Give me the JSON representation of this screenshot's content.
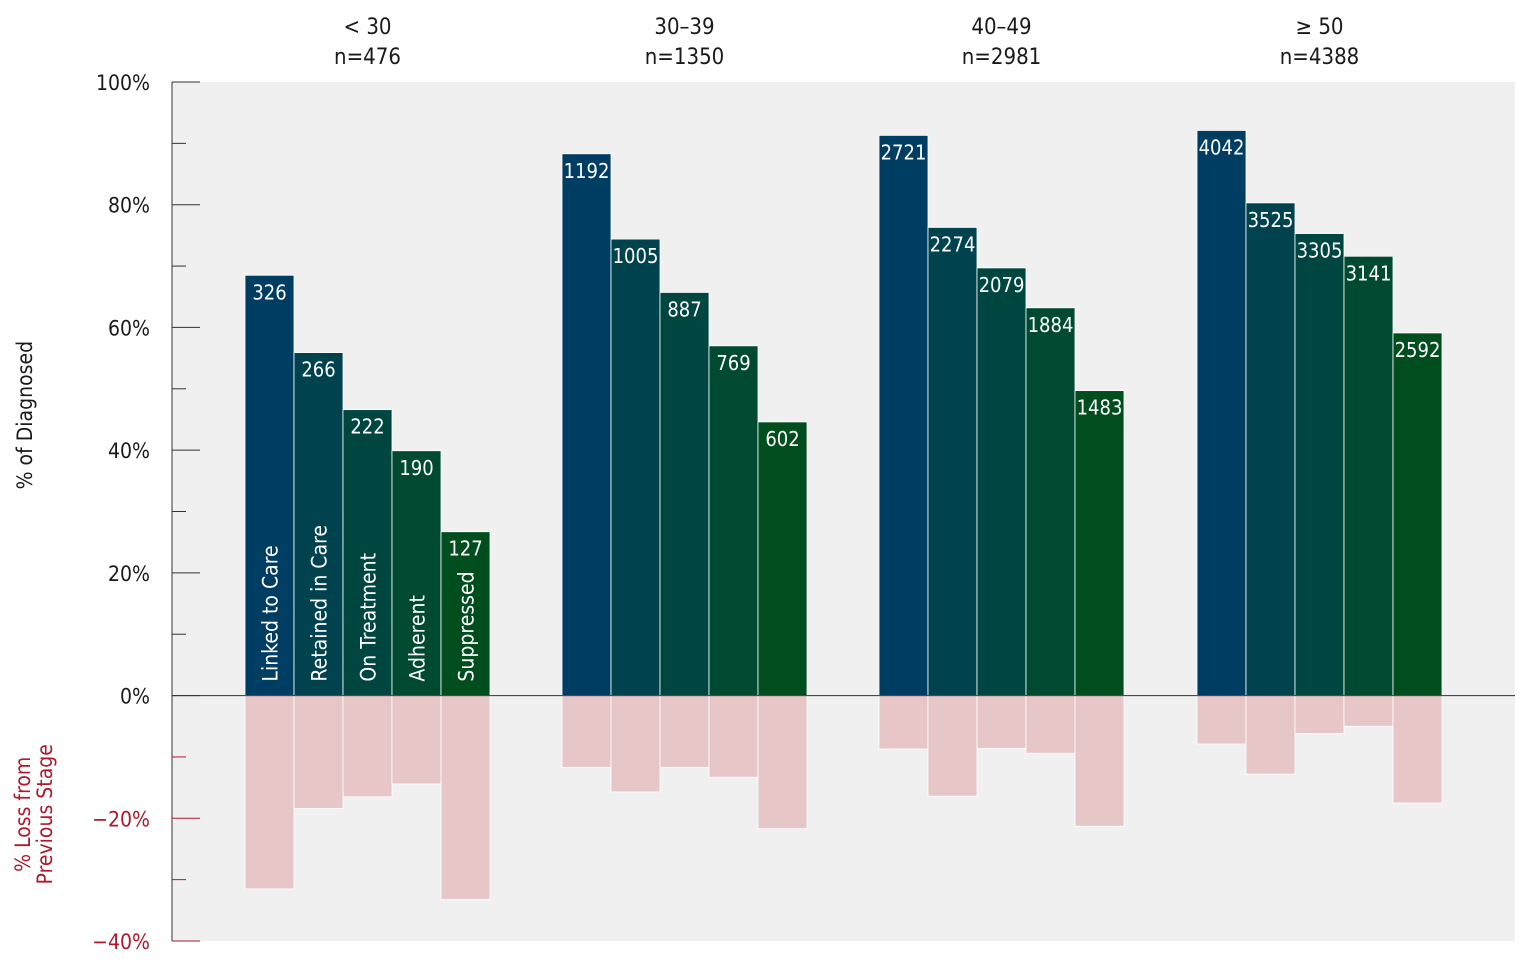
{
  "chart_data": {
    "type": "bar",
    "stages": [
      "Linked to Care",
      "Retained in Care",
      "On Treatment",
      "Adherent",
      "Suppressed"
    ],
    "stage_colors": [
      "#003d63",
      "#00434f",
      "#004640",
      "#004a31",
      "#004d1e"
    ],
    "loss_color": "#e7c6c8",
    "panel_background": "#f0f0f0",
    "groups": [
      {
        "label": "< 30",
        "n_label": "n=476",
        "n": 476,
        "counts": [
          326,
          266,
          222,
          190,
          127
        ],
        "pct": [
          68.5,
          55.9,
          46.6,
          39.9,
          26.7
        ],
        "loss_pct": [
          -31.5,
          -18.4,
          -16.5,
          -14.4,
          -33.2
        ]
      },
      {
        "label": "30–39",
        "n_label": "n=1350",
        "n": 1350,
        "counts": [
          1192,
          1005,
          887,
          769,
          602
        ],
        "pct": [
          88.3,
          74.4,
          65.7,
          57.0,
          44.6
        ],
        "loss_pct": [
          -11.7,
          -15.7,
          -11.7,
          -13.3,
          -21.7
        ]
      },
      {
        "label": "40–49",
        "n_label": "n=2981",
        "n": 2981,
        "counts": [
          2721,
          2274,
          2079,
          1884,
          1483
        ],
        "pct": [
          91.3,
          76.3,
          69.7,
          63.2,
          49.7
        ],
        "loss_pct": [
          -8.7,
          -16.4,
          -8.6,
          -9.4,
          -21.3
        ]
      },
      {
        "label": "≥ 50",
        "n_label": "n=4388",
        "n": 4388,
        "counts": [
          4042,
          3525,
          3305,
          3141,
          2592
        ],
        "pct": [
          92.1,
          80.3,
          75.3,
          71.6,
          59.1
        ],
        "loss_pct": [
          -7.9,
          -12.8,
          -6.2,
          -5.0,
          -17.5
        ]
      }
    ],
    "ylabel": "% of Diagnosed",
    "ylabel_loss": [
      "% Loss from",
      "Previous Stage"
    ],
    "ylim": [
      -40,
      100
    ],
    "yticks": [
      -40,
      -20,
      0,
      20,
      40,
      60,
      80,
      100
    ],
    "ytick_labels": [
      "−40%",
      "−20%",
      "0%",
      "20%",
      "40%",
      "60%",
      "80%",
      "100%"
    ],
    "legend": "stage names printed vertically inside the first group's bars",
    "grid": false
  }
}
